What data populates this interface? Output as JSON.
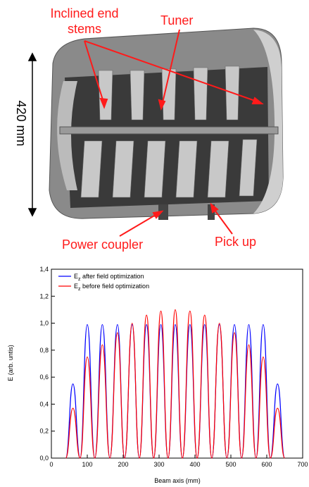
{
  "annotations": {
    "end_stems": "Inclined end stems",
    "tuner": "Tuner",
    "length": "420 mm",
    "power_coupler": "Power coupler",
    "pick_up": "Pick up"
  },
  "chart_data": {
    "type": "line",
    "x_label": "Beam axis (mm)",
    "y_label": "E (arb. untis)",
    "x": [
      40,
      60,
      80,
      100,
      121,
      142,
      163,
      184,
      204,
      225,
      245,
      265,
      285,
      305,
      325,
      345,
      365,
      386,
      406,
      427,
      447,
      468,
      489,
      510,
      530,
      550,
      570,
      590,
      610,
      630,
      650
    ],
    "series": [
      {
        "name": "Ez after field optimization",
        "color": "#0000ff",
        "values": [
          0,
          0.55,
          0,
          0.99,
          0,
          0.99,
          0,
          0.99,
          0,
          0.99,
          0,
          0.99,
          0,
          0.99,
          0,
          0.99,
          0,
          0.99,
          0,
          0.99,
          0,
          0.99,
          0,
          0.99,
          0,
          0.99,
          0,
          0.99,
          0,
          0.55,
          0
        ]
      },
      {
        "name": "Ez before field optimization",
        "color": "#ff0000",
        "values": [
          0,
          0.37,
          0,
          0.75,
          0,
          0.84,
          0,
          0.93,
          0,
          1.0,
          0,
          1.06,
          0,
          1.09,
          0,
          1.1,
          0,
          1.09,
          0,
          1.06,
          0,
          1.0,
          0,
          0.93,
          0,
          0.84,
          0,
          0.75,
          0,
          0.37,
          0
        ]
      }
    ],
    "xlim": [
      0,
      700
    ],
    "xticks": [
      0,
      100,
      200,
      300,
      400,
      500,
      600,
      700
    ],
    "ylim": [
      0,
      1.4
    ],
    "yticks": [
      {
        "value": 0,
        "label": "0,0"
      },
      {
        "value": 0.2,
        "label": "0,2"
      },
      {
        "value": 0.4,
        "label": "0,4"
      },
      {
        "value": 0.6,
        "label": "0,6"
      },
      {
        "value": 0.8,
        "label": "0,8"
      },
      {
        "value": 1.0,
        "label": "1,0"
      },
      {
        "value": 1.2,
        "label": "1,2"
      },
      {
        "value": 1.4,
        "label": "1,4"
      }
    ],
    "legend": "upper left"
  }
}
